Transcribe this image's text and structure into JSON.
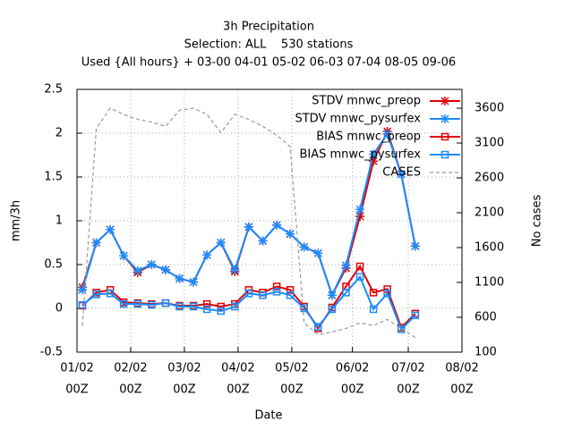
{
  "chart_data": {
    "type": "line",
    "title": [
      "3h Precipitation",
      "Selection: ALL    530 stations",
      "Used {All hours} + 03-00 04-01 05-02 06-03 07-04 08-05 09-06"
    ],
    "xlabel": "Date",
    "ylabel": "mm/3h",
    "y2label": "No cases",
    "x": [
      0.1,
      0.36,
      0.62,
      0.87,
      1.13,
      1.39,
      1.65,
      1.91,
      2.17,
      2.42,
      2.68,
      2.94,
      3.2,
      3.46,
      3.72,
      3.97,
      4.23,
      4.49,
      4.75,
      5.01,
      5.27,
      5.52,
      5.78,
      6.04,
      6.3
    ],
    "xlim": [
      0,
      7.17
    ],
    "xticks": [
      {
        "value": 0,
        "label": [
          "01/02",
          "00Z"
        ]
      },
      {
        "value": 1,
        "label": [
          "02/02",
          "00Z"
        ]
      },
      {
        "value": 2,
        "label": [
          "03/02",
          "00Z"
        ]
      },
      {
        "value": 3,
        "label": [
          "04/02",
          "00Z"
        ]
      },
      {
        "value": 4,
        "label": [
          "05/02",
          "00Z"
        ]
      },
      {
        "value": 5.13,
        "label": [
          "06/02",
          "00Z"
        ]
      },
      {
        "value": 6.17,
        "label": [
          "07/02",
          "00Z"
        ]
      },
      {
        "value": 7.17,
        "label": [
          "08/02",
          "00Z"
        ]
      }
    ],
    "ylim": [
      -0.5,
      2.5
    ],
    "yticks": [
      -0.5,
      0,
      0.5,
      1,
      1.5,
      2,
      2.5
    ],
    "y2lim": [
      100,
      3870
    ],
    "y2ticks": [
      100,
      600,
      1100,
      1600,
      2100,
      2600,
      3100,
      3600
    ],
    "grid": true,
    "legend": "top-right",
    "series": [
      {
        "name": "STDV mnwc_preop",
        "color": "#e00000",
        "marker": "star",
        "values": [
          0.24,
          0.75,
          0.9,
          0.6,
          0.41,
          0.5,
          0.44,
          0.34,
          0.3,
          0.61,
          0.75,
          0.42,
          0.93,
          0.77,
          0.95,
          0.85,
          0.7,
          0.63,
          0.15,
          0.46,
          1.05,
          1.68,
          2.02,
          1.53,
          0.71
        ]
      },
      {
        "name": "STDV mnwc_pysurfex",
        "color": "#1a8cff",
        "marker": "star",
        "values": [
          0.21,
          0.75,
          0.9,
          0.6,
          0.43,
          0.5,
          0.44,
          0.34,
          0.3,
          0.61,
          0.75,
          0.44,
          0.93,
          0.77,
          0.95,
          0.85,
          0.7,
          0.63,
          0.15,
          0.49,
          1.13,
          1.76,
          1.99,
          1.53,
          0.71
        ]
      },
      {
        "name": "BIAS mnwc_preop",
        "color": "#e00000",
        "marker": "square",
        "values": [
          0.03,
          0.18,
          0.21,
          0.07,
          0.06,
          0.05,
          0.06,
          0.03,
          0.03,
          0.05,
          0.02,
          0.05,
          0.21,
          0.18,
          0.25,
          0.21,
          0.02,
          -0.23,
          0.01,
          0.25,
          0.48,
          0.18,
          0.22,
          -0.22,
          -0.06
        ]
      },
      {
        "name": "BIAS mnwc_pysurfex",
        "color": "#1a8cff",
        "marker": "square",
        "values": [
          0.04,
          0.16,
          0.17,
          0.05,
          0.05,
          0.04,
          0.06,
          0.02,
          0.02,
          -0.01,
          -0.03,
          0.02,
          0.17,
          0.15,
          0.19,
          0.15,
          0,
          -0.21,
          -0.01,
          0.18,
          0.36,
          -0.01,
          0.17,
          -0.24,
          -0.08
        ]
      },
      {
        "name": "CASES",
        "color": "#999999",
        "marker": "none",
        "dash": true,
        "axis": "y2",
        "values": [
          480,
          3310,
          3600,
          3510,
          3440,
          3400,
          3340,
          3570,
          3600,
          3510,
          3250,
          3510,
          3440,
          3340,
          3210,
          3050,
          520,
          350,
          390,
          440,
          520,
          480,
          570,
          440,
          310
        ]
      }
    ]
  }
}
